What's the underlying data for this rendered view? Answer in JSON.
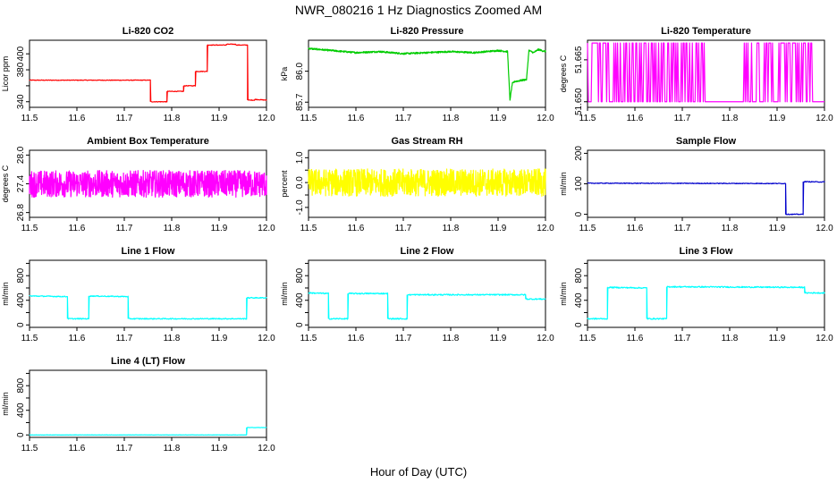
{
  "figure": {
    "title": "NWR_080216  1 Hz Diagnostics Zoomed AM",
    "xlabel": "Hour of Day (UTC)"
  },
  "chart_data": [
    {
      "type": "line",
      "title": "Li-820 CO2",
      "ylabel": "Licor ppm",
      "color": "#ff0000",
      "xlim": [
        11.5,
        12.0
      ],
      "ylim": [
        333,
        417
      ],
      "xticks": [
        11.5,
        11.6,
        11.7,
        11.8,
        11.9,
        12.0
      ],
      "xtick_labels": [
        "11.5",
        "11.6",
        "11.7",
        "11.8",
        "11.9",
        "12.0"
      ],
      "yticks": [
        340,
        360,
        380,
        400
      ],
      "ytick_labels": [
        "340",
        "",
        "380",
        "400"
      ],
      "series": [
        {
          "x": [
            11.5,
            11.755,
            11.755,
            11.79,
            11.79,
            11.825,
            11.825,
            11.85,
            11.85,
            11.875,
            11.875,
            11.915,
            11.915,
            11.935,
            11.935,
            11.96,
            11.96,
            11.975,
            11.975,
            12.0
          ],
          "y": [
            367,
            367,
            340,
            340,
            353,
            353,
            360,
            360,
            378,
            378,
            411,
            411,
            412,
            412,
            411,
            411,
            342,
            342,
            343,
            342
          ],
          "noise": 0.4
        }
      ]
    },
    {
      "type": "line",
      "title": "Li-820 Pressure",
      "ylabel": "kPa",
      "color": "#00cc00",
      "xlim": [
        11.5,
        12.0
      ],
      "ylim": [
        85.65,
        86.3
      ],
      "xticks": [
        11.5,
        11.6,
        11.7,
        11.8,
        11.9,
        12.0
      ],
      "xtick_labels": [
        "11.5",
        "11.6",
        "11.7",
        "11.8",
        "11.9",
        "12.0"
      ],
      "yticks": [
        85.7,
        86.0
      ],
      "ytick_labels": [
        "85.7",
        "86.0"
      ],
      "series": [
        {
          "x": [
            11.5,
            11.55,
            11.6,
            11.65,
            11.7,
            11.75,
            11.8,
            11.85,
            11.9,
            11.92,
            11.925,
            11.93,
            11.935,
            11.96,
            11.965,
            11.975,
            11.985,
            12.0
          ],
          "y": [
            86.22,
            86.2,
            86.18,
            86.19,
            86.17,
            86.18,
            86.19,
            86.18,
            86.2,
            86.19,
            85.72,
            85.88,
            85.9,
            85.92,
            86.2,
            86.18,
            86.21,
            86.19
          ],
          "noise": 0.008
        }
      ]
    },
    {
      "type": "line",
      "title": "Li-820 Temperature",
      "ylabel": "degrees C",
      "color": "#ff00ff",
      "xlim": [
        11.5,
        12.0
      ],
      "ylim": [
        51.648,
        51.672
      ],
      "xticks": [
        11.5,
        11.6,
        11.7,
        11.8,
        11.9,
        12.0
      ],
      "xtick_labels": [
        "11.5",
        "11.6",
        "11.7",
        "11.8",
        "11.9",
        "12.0"
      ],
      "yticks": [
        51.65,
        51.665
      ],
      "ytick_labels": [
        "51.650",
        "51.665"
      ],
      "series": [
        {
          "x": [
            11.5,
            12.0
          ],
          "y": [
            51.65,
            51.65
          ],
          "levels": [
            51.65,
            51.671
          ],
          "gaps": [
            [
              11.748,
              11.825
            ],
            [
              11.975,
              12.0
            ]
          ]
        }
      ]
    },
    {
      "type": "line",
      "title": "Ambient Box Temperature",
      "ylabel": "degrees C",
      "color": "#ff00ff",
      "xlim": [
        11.5,
        12.0
      ],
      "ylim": [
        26.7,
        28.1
      ],
      "xticks": [
        11.5,
        11.6,
        11.7,
        11.8,
        11.9,
        12.0
      ],
      "xtick_labels": [
        "11.5",
        "11.6",
        "11.7",
        "11.8",
        "11.9",
        "12.0"
      ],
      "yticks": [
        26.8,
        27.4,
        28.0
      ],
      "ytick_labels": [
        "26.8",
        "27.4",
        "28.0"
      ],
      "series": [
        {
          "x": [
            11.5,
            12.0
          ],
          "y": [
            27.4,
            27.4
          ],
          "noise": 0.28
        }
      ]
    },
    {
      "type": "line",
      "title": "Gas Stream RH",
      "ylabel": "percent",
      "color": "#ffff00",
      "xlim": [
        11.5,
        12.0
      ],
      "ylim": [
        -1.4,
        1.3
      ],
      "xticks": [
        11.5,
        11.6,
        11.7,
        11.8,
        11.9,
        12.0
      ],
      "xtick_labels": [
        "11.5",
        "11.6",
        "11.7",
        "11.8",
        "11.9",
        "12.0"
      ],
      "yticks": [
        -1.0,
        -0.5,
        0.0,
        0.5,
        1.0
      ],
      "ytick_labels": [
        "-1.0",
        "",
        "0.0",
        "",
        "1.0"
      ],
      "series": [
        {
          "x": [
            11.5,
            12.0
          ],
          "y": [
            0.0,
            0.0
          ],
          "noise": 0.55
        }
      ]
    },
    {
      "type": "line",
      "title": "Sample Flow",
      "ylabel": "ml/min",
      "color": "#0000cc",
      "xlim": [
        11.5,
        12.0
      ],
      "ylim": [
        -10,
        210
      ],
      "xticks": [
        11.5,
        11.6,
        11.7,
        11.8,
        11.9,
        12.0
      ],
      "xtick_labels": [
        "11.5",
        "11.6",
        "11.7",
        "11.8",
        "11.9",
        "12.0"
      ],
      "yticks": [
        0,
        100,
        200
      ],
      "ytick_labels": [
        "0",
        "100",
        "200"
      ],
      "series": [
        {
          "x": [
            11.5,
            11.918,
            11.918,
            11.955,
            11.955,
            12.0
          ],
          "y": [
            102,
            101,
            0,
            0,
            107,
            106
          ],
          "noise": 1.2
        }
      ]
    },
    {
      "type": "line",
      "title": "Line 1 Flow",
      "ylabel": "ml/min",
      "color": "#00ffff",
      "xlim": [
        11.5,
        12.0
      ],
      "ylim": [
        -40,
        1050
      ],
      "xticks": [
        11.5,
        11.6,
        11.7,
        11.8,
        11.9,
        12.0
      ],
      "xtick_labels": [
        "11.5",
        "11.6",
        "11.7",
        "11.8",
        "11.9",
        "12.0"
      ],
      "yticks": [
        0,
        200,
        400,
        600,
        800,
        1000
      ],
      "ytick_labels": [
        "0",
        "",
        "400",
        "",
        "800",
        ""
      ],
      "series": [
        {
          "x": [
            11.5,
            11.58,
            11.58,
            11.625,
            11.625,
            11.708,
            11.708,
            11.958,
            11.958,
            12.0
          ],
          "y": [
            470,
            460,
            100,
            100,
            470,
            460,
            100,
            100,
            440,
            440
          ],
          "noise": 8
        }
      ]
    },
    {
      "type": "line",
      "title": "Line 2 Flow",
      "ylabel": "ml/min",
      "color": "#00ffff",
      "xlim": [
        11.5,
        12.0
      ],
      "ylim": [
        -40,
        1050
      ],
      "xticks": [
        11.5,
        11.6,
        11.7,
        11.8,
        11.9,
        12.0
      ],
      "xtick_labels": [
        "11.5",
        "11.6",
        "11.7",
        "11.8",
        "11.9",
        "12.0"
      ],
      "yticks": [
        0,
        200,
        400,
        600,
        800,
        1000
      ],
      "ytick_labels": [
        "0",
        "",
        "400",
        "",
        "800",
        ""
      ],
      "series": [
        {
          "x": [
            11.5,
            11.542,
            11.542,
            11.583,
            11.583,
            11.667,
            11.667,
            11.708,
            11.708,
            11.958,
            11.958,
            12.0
          ],
          "y": [
            520,
            510,
            100,
            100,
            510,
            510,
            100,
            100,
            490,
            490,
            420,
            420
          ],
          "noise": 10
        }
      ]
    },
    {
      "type": "line",
      "title": "Line 3 Flow",
      "ylabel": "ml/min",
      "color": "#00ffff",
      "xlim": [
        11.5,
        12.0
      ],
      "ylim": [
        -40,
        1050
      ],
      "xticks": [
        11.5,
        11.6,
        11.7,
        11.8,
        11.9,
        12.0
      ],
      "xtick_labels": [
        "11.5",
        "11.6",
        "11.7",
        "11.8",
        "11.9",
        "12.0"
      ],
      "yticks": [
        0,
        200,
        400,
        600,
        800,
        1000
      ],
      "ytick_labels": [
        "0",
        "",
        "400",
        "",
        "800",
        ""
      ],
      "series": [
        {
          "x": [
            11.5,
            11.542,
            11.542,
            11.625,
            11.625,
            11.667,
            11.667,
            11.958,
            11.958,
            12.0
          ],
          "y": [
            100,
            100,
            610,
            600,
            100,
            100,
            620,
            610,
            520,
            520
          ],
          "noise": 10
        }
      ]
    },
    {
      "type": "line",
      "title": "Line 4 (LT) Flow",
      "ylabel": "ml/min",
      "color": "#00ffff",
      "xlim": [
        11.5,
        12.0
      ],
      "ylim": [
        -40,
        1050
      ],
      "xticks": [
        11.5,
        11.6,
        11.7,
        11.8,
        11.9,
        12.0
      ],
      "xtick_labels": [
        "11.5",
        "11.6",
        "11.7",
        "11.8",
        "11.9",
        "12.0"
      ],
      "yticks": [
        0,
        200,
        400,
        600,
        800,
        1000
      ],
      "ytick_labels": [
        "0",
        "",
        "400",
        "",
        "800",
        ""
      ],
      "series": [
        {
          "x": [
            11.5,
            11.958,
            11.958,
            12.0
          ],
          "y": [
            0,
            0,
            120,
            120
          ],
          "noise": 2
        }
      ]
    }
  ]
}
